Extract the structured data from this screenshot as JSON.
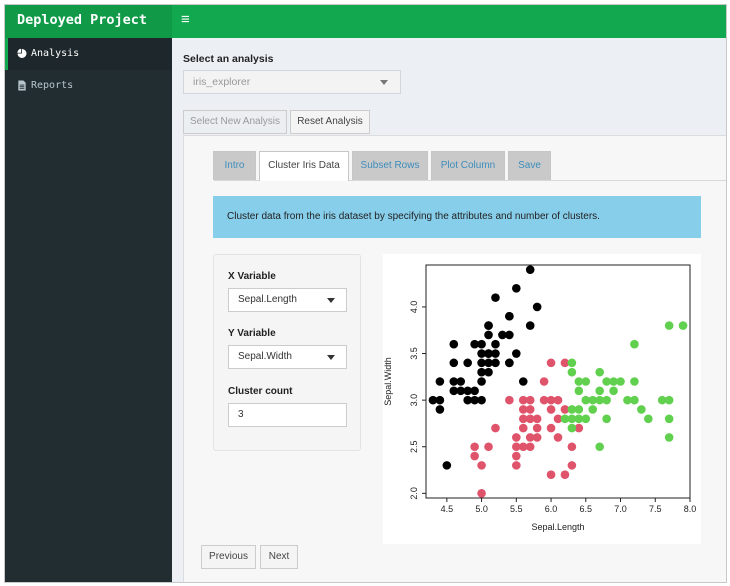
{
  "app": {
    "title": "Deployed Project",
    "menu_icon": "hamburger-menu-icon"
  },
  "sidebar": {
    "items": [
      {
        "label": "Analysis",
        "icon": "pie-chart-icon",
        "active": true
      },
      {
        "label": "Reports",
        "icon": "file-icon",
        "active": false
      }
    ]
  },
  "main": {
    "select_label": "Select an analysis",
    "select_value": "iris_explorer",
    "buttons": {
      "select_new": "Select New Analysis",
      "reset": "Reset Analysis"
    },
    "tabs": [
      "Intro",
      "Cluster Iris Data",
      "Subset Rows",
      "Plot Column",
      "Save"
    ],
    "active_tab": "Cluster Iris Data",
    "callout": "Cluster data from the iris dataset by specifying the attributes and number of clusters.",
    "controls": {
      "x_label": "X Variable",
      "x_value": "Sepal.Length",
      "y_label": "Y Variable",
      "y_value": "Sepal.Width",
      "k_label": "Cluster count",
      "k_value": "3"
    },
    "nav": {
      "previous": "Previous",
      "next": "Next"
    }
  },
  "colors": {
    "brand": "#109a48",
    "header": "#12a84f",
    "sidebar": "#222d32",
    "callout": "#87ceeb",
    "cluster_1": "#000000",
    "cluster_2": "#df536b",
    "cluster_3": "#61d04f"
  },
  "chart_data": {
    "type": "scatter",
    "xlabel": "Sepal.Length",
    "ylabel": "Sepal.Width",
    "xlim": [
      4.2,
      8.0
    ],
    "ylim": [
      1.95,
      4.45
    ],
    "xticks": [
      "4.5",
      "5.0",
      "5.5",
      "6.0",
      "6.5",
      "7.0",
      "7.5",
      "8.0"
    ],
    "yticks": [
      "2.0",
      "2.5",
      "3.0",
      "3.5",
      "4.0"
    ],
    "series": [
      {
        "color": "#000000",
        "points": [
          [
            4.3,
            3.0
          ],
          [
            4.4,
            2.9
          ],
          [
            4.4,
            3.0
          ],
          [
            4.4,
            3.2
          ],
          [
            4.5,
            2.3
          ],
          [
            4.6,
            3.1
          ],
          [
            4.6,
            3.4
          ],
          [
            4.6,
            3.6
          ],
          [
            4.6,
            3.2
          ],
          [
            4.7,
            3.2
          ],
          [
            4.7,
            3.1
          ],
          [
            4.8,
            3.4
          ],
          [
            4.8,
            3.0
          ],
          [
            4.8,
            3.1
          ],
          [
            4.9,
            3.1
          ],
          [
            4.9,
            3.0
          ],
          [
            4.9,
            3.6
          ],
          [
            5.0,
            3.6
          ],
          [
            5.0,
            3.4
          ],
          [
            5.0,
            3.0
          ],
          [
            5.0,
            3.5
          ],
          [
            5.0,
            3.3
          ],
          [
            5.0,
            3.2
          ],
          [
            5.1,
            3.5
          ],
          [
            5.1,
            3.7
          ],
          [
            5.1,
            3.8
          ],
          [
            5.1,
            3.3
          ],
          [
            5.1,
            3.4
          ],
          [
            5.1,
            3.8
          ],
          [
            5.1,
            3.5
          ],
          [
            5.2,
            3.5
          ],
          [
            5.2,
            3.4
          ],
          [
            5.2,
            4.1
          ],
          [
            5.2,
            3.6
          ],
          [
            5.3,
            3.7
          ],
          [
            5.4,
            3.9
          ],
          [
            5.4,
            3.4
          ],
          [
            5.4,
            3.7
          ],
          [
            5.4,
            3.4
          ],
          [
            5.4,
            3.9
          ],
          [
            5.5,
            4.2
          ],
          [
            5.5,
            3.5
          ],
          [
            5.6,
            3.2
          ],
          [
            5.7,
            4.4
          ],
          [
            5.7,
            3.8
          ],
          [
            5.8,
            4.0
          ]
        ]
      },
      {
        "color": "#df536b",
        "points": [
          [
            4.9,
            2.4
          ],
          [
            4.9,
            2.5
          ],
          [
            5.0,
            2.0
          ],
          [
            5.0,
            2.3
          ],
          [
            5.1,
            2.5
          ],
          [
            5.2,
            2.7
          ],
          [
            5.4,
            3.0
          ],
          [
            5.5,
            2.3
          ],
          [
            5.5,
            2.4
          ],
          [
            5.5,
            2.6
          ],
          [
            5.5,
            2.5
          ],
          [
            5.6,
            2.9
          ],
          [
            5.6,
            3.0
          ],
          [
            5.6,
            2.5
          ],
          [
            5.6,
            2.7
          ],
          [
            5.6,
            2.8
          ],
          [
            5.7,
            2.8
          ],
          [
            5.7,
            2.6
          ],
          [
            5.7,
            3.0
          ],
          [
            5.7,
            2.9
          ],
          [
            5.7,
            2.5
          ],
          [
            5.8,
            2.7
          ],
          [
            5.8,
            2.8
          ],
          [
            5.8,
            2.6
          ],
          [
            5.9,
            3.0
          ],
          [
            5.9,
            3.2
          ],
          [
            6.0,
            2.2
          ],
          [
            6.0,
            2.9
          ],
          [
            6.0,
            2.7
          ],
          [
            6.0,
            3.4
          ],
          [
            6.0,
            3.0
          ],
          [
            6.1,
            2.8
          ],
          [
            6.1,
            2.6
          ],
          [
            6.1,
            3.0
          ],
          [
            6.2,
            2.2
          ],
          [
            6.2,
            2.9
          ],
          [
            6.2,
            3.4
          ],
          [
            6.3,
            2.3
          ],
          [
            6.3,
            2.5
          ],
          [
            6.4,
            2.7
          ]
        ]
      },
      {
        "color": "#61d04f",
        "points": [
          [
            6.2,
            2.8
          ],
          [
            6.3,
            3.3
          ],
          [
            6.3,
            2.7
          ],
          [
            6.3,
            2.9
          ],
          [
            6.3,
            2.8
          ],
          [
            6.3,
            3.4
          ],
          [
            6.4,
            3.2
          ],
          [
            6.4,
            2.9
          ],
          [
            6.4,
            3.1
          ],
          [
            6.4,
            2.8
          ],
          [
            6.5,
            2.8
          ],
          [
            6.5,
            3.0
          ],
          [
            6.5,
            3.2
          ],
          [
            6.6,
            2.9
          ],
          [
            6.6,
            3.0
          ],
          [
            6.7,
            3.1
          ],
          [
            6.7,
            3.0
          ],
          [
            6.7,
            2.5
          ],
          [
            6.7,
            3.3
          ],
          [
            6.8,
            2.8
          ],
          [
            6.8,
            3.0
          ],
          [
            6.8,
            3.2
          ],
          [
            6.9,
            3.1
          ],
          [
            6.9,
            3.2
          ],
          [
            7.0,
            3.2
          ],
          [
            7.1,
            3.0
          ],
          [
            7.2,
            3.6
          ],
          [
            7.2,
            3.2
          ],
          [
            7.2,
            3.0
          ],
          [
            7.3,
            2.9
          ],
          [
            7.4,
            2.8
          ],
          [
            7.6,
            3.0
          ],
          [
            7.7,
            3.8
          ],
          [
            7.7,
            2.6
          ],
          [
            7.7,
            2.8
          ],
          [
            7.7,
            3.0
          ],
          [
            7.9,
            3.8
          ]
        ]
      }
    ]
  }
}
